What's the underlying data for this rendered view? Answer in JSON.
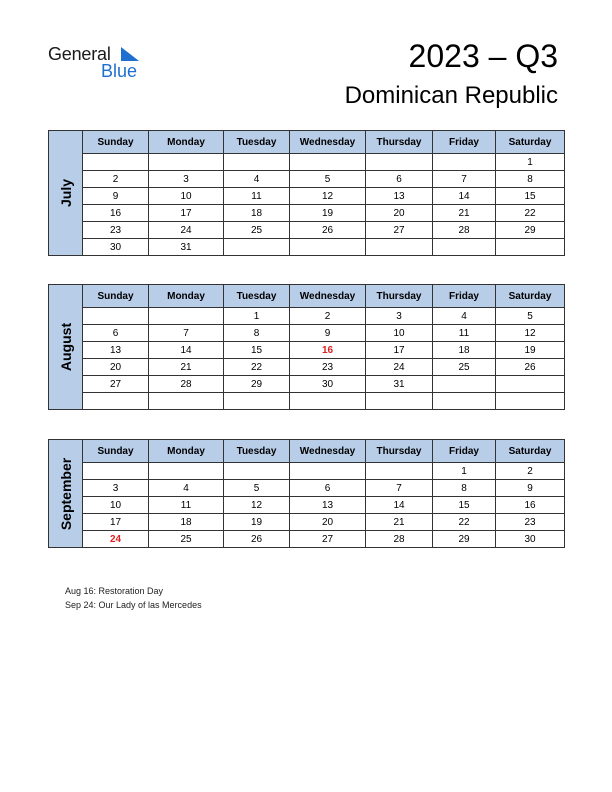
{
  "logo": {
    "general": "General",
    "blue": "Blue"
  },
  "title": "2023 – Q3",
  "country": "Dominican Republic",
  "weekdays": [
    "Sunday",
    "Monday",
    "Tuesday",
    "Wednesday",
    "Thursday",
    "Friday",
    "Saturday"
  ],
  "months": [
    {
      "name": "July",
      "weeks": [
        [
          "",
          "",
          "",
          "",
          "",
          "",
          "1"
        ],
        [
          "2",
          "3",
          "4",
          "5",
          "6",
          "7",
          "8"
        ],
        [
          "9",
          "10",
          "11",
          "12",
          "13",
          "14",
          "15"
        ],
        [
          "16",
          "17",
          "18",
          "19",
          "20",
          "21",
          "22"
        ],
        [
          "23",
          "24",
          "25",
          "26",
          "27",
          "28",
          "29"
        ],
        [
          "30",
          "31",
          "",
          "",
          "",
          "",
          ""
        ]
      ],
      "holidays": []
    },
    {
      "name": "August",
      "weeks": [
        [
          "",
          "",
          "1",
          "2",
          "3",
          "4",
          "5"
        ],
        [
          "6",
          "7",
          "8",
          "9",
          "10",
          "11",
          "12"
        ],
        [
          "13",
          "14",
          "15",
          "16",
          "17",
          "18",
          "19"
        ],
        [
          "20",
          "21",
          "22",
          "23",
          "24",
          "25",
          "26"
        ],
        [
          "27",
          "28",
          "29",
          "30",
          "31",
          "",
          ""
        ],
        [
          "",
          "",
          "",
          "",
          "",
          "",
          ""
        ]
      ],
      "holidays": [
        "16"
      ]
    },
    {
      "name": "September",
      "weeks": [
        [
          "",
          "",
          "",
          "",
          "",
          "1",
          "2"
        ],
        [
          "3",
          "4",
          "5",
          "6",
          "7",
          "8",
          "9"
        ],
        [
          "10",
          "11",
          "12",
          "13",
          "14",
          "15",
          "16"
        ],
        [
          "17",
          "18",
          "19",
          "20",
          "21",
          "22",
          "23"
        ],
        [
          "24",
          "25",
          "26",
          "27",
          "28",
          "29",
          "30"
        ]
      ],
      "holidays": [
        "24"
      ]
    }
  ],
  "notes": [
    "Aug 16: Restoration Day",
    "Sep 24: Our Lady of las Mercedes"
  ],
  "colors": {
    "header_bg": "#b8cde8",
    "holiday": "#e02020",
    "brand_blue": "#1e6fd0"
  }
}
